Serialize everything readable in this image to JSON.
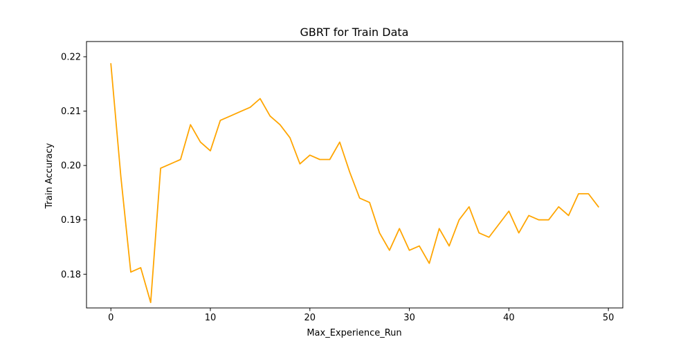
{
  "chart_data": {
    "type": "line",
    "title": "GBRT for Train Data",
    "xlabel": "Max_Experience_Run",
    "ylabel": "Train Accuracy",
    "xlim": [
      -2.45,
      51.45
    ],
    "ylim": [
      0.1738,
      0.2228
    ],
    "xticks": [
      0,
      10,
      20,
      30,
      40,
      50
    ],
    "yticks": [
      0.18,
      0.19,
      0.2,
      0.21,
      0.22
    ],
    "xtick_labels": [
      "0",
      "10",
      "20",
      "30",
      "40",
      "50"
    ],
    "ytick_labels": [
      "0.18",
      "0.19",
      "0.20",
      "0.21",
      "0.22"
    ],
    "grid": false,
    "series": [
      {
        "color": "#ffa500",
        "x": [
          0,
          1,
          2,
          3,
          4,
          5,
          6,
          7,
          8,
          9,
          10,
          11,
          12,
          13,
          14,
          15,
          16,
          17,
          18,
          19,
          20,
          21,
          22,
          23,
          24,
          25,
          26,
          27,
          28,
          29,
          30,
          31,
          32,
          33,
          34,
          35,
          36,
          37,
          38,
          39,
          40,
          41,
          42,
          43,
          44,
          45,
          46,
          47,
          48,
          49
        ],
        "y": [
          0.2187,
          0.198,
          0.1804,
          0.1812,
          0.1748,
          0.1995,
          0.2003,
          0.2011,
          0.2075,
          0.2043,
          0.2027,
          0.2083,
          0.2091,
          0.2099,
          0.2107,
          0.2123,
          0.2091,
          0.2075,
          0.2051,
          0.2003,
          0.2019,
          0.2011,
          0.2011,
          0.2043,
          0.1988,
          0.194,
          0.1932,
          0.1876,
          0.1844,
          0.1884,
          0.1844,
          0.1852,
          0.182,
          0.1884,
          0.1852,
          0.19,
          0.1924,
          0.1876,
          0.1868,
          0.1892,
          0.1916,
          0.1876,
          0.1908,
          0.19,
          0.19,
          0.1924,
          0.1908,
          0.1948,
          0.1948,
          0.1924
        ]
      }
    ]
  }
}
